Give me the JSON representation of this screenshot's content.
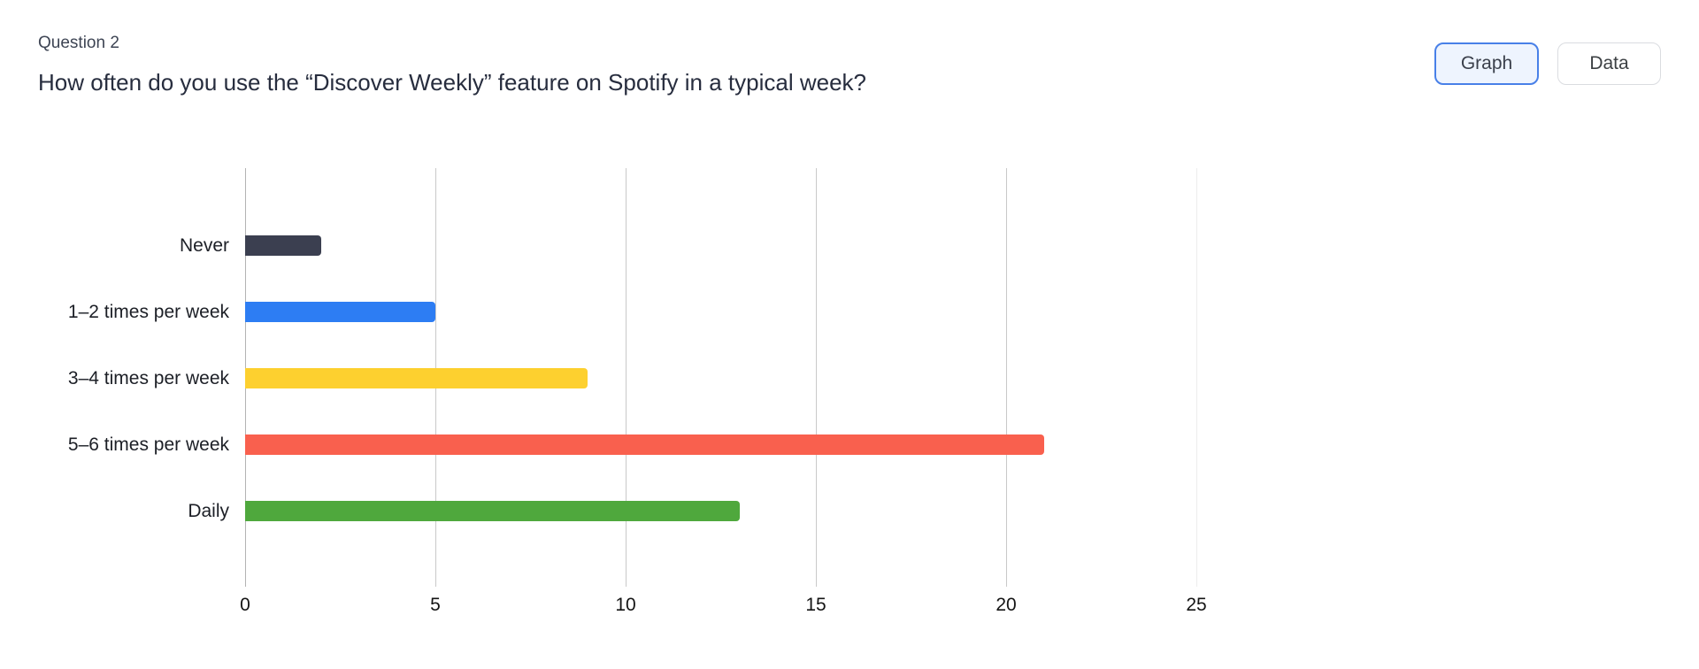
{
  "header": {
    "question_label": "Question 2",
    "question_title": "How often do you use the “Discover Weekly” feature on Spotify in a typical week?"
  },
  "toolbar": {
    "graph_label": "Graph",
    "data_label": "Data",
    "active_view": "Graph"
  },
  "colors": {
    "active_button_border": "#4880e8",
    "active_button_background": "#eef4fe",
    "inactive_button_border": "#dadce0",
    "axis_line": "#b3b3b3",
    "grid_line": "#c9c9c9",
    "grid_line_light": "#ededed"
  },
  "chart_data": {
    "type": "bar",
    "orientation": "horizontal",
    "title": "",
    "xlabel": "",
    "ylabel": "",
    "grid": true,
    "legend": false,
    "categories": [
      "Never",
      "1–2 times per week",
      "3–4 times per week",
      "5–6 times per week",
      "Daily"
    ],
    "values": [
      2,
      5,
      9,
      21,
      13
    ],
    "bar_colors": [
      "#3b3f50",
      "#2d7df3",
      "#fdd02f",
      "#f9604e",
      "#4fa83d"
    ],
    "xlim": [
      0,
      25
    ],
    "x_ticks": [
      0,
      5,
      10,
      15,
      20,
      25
    ]
  }
}
